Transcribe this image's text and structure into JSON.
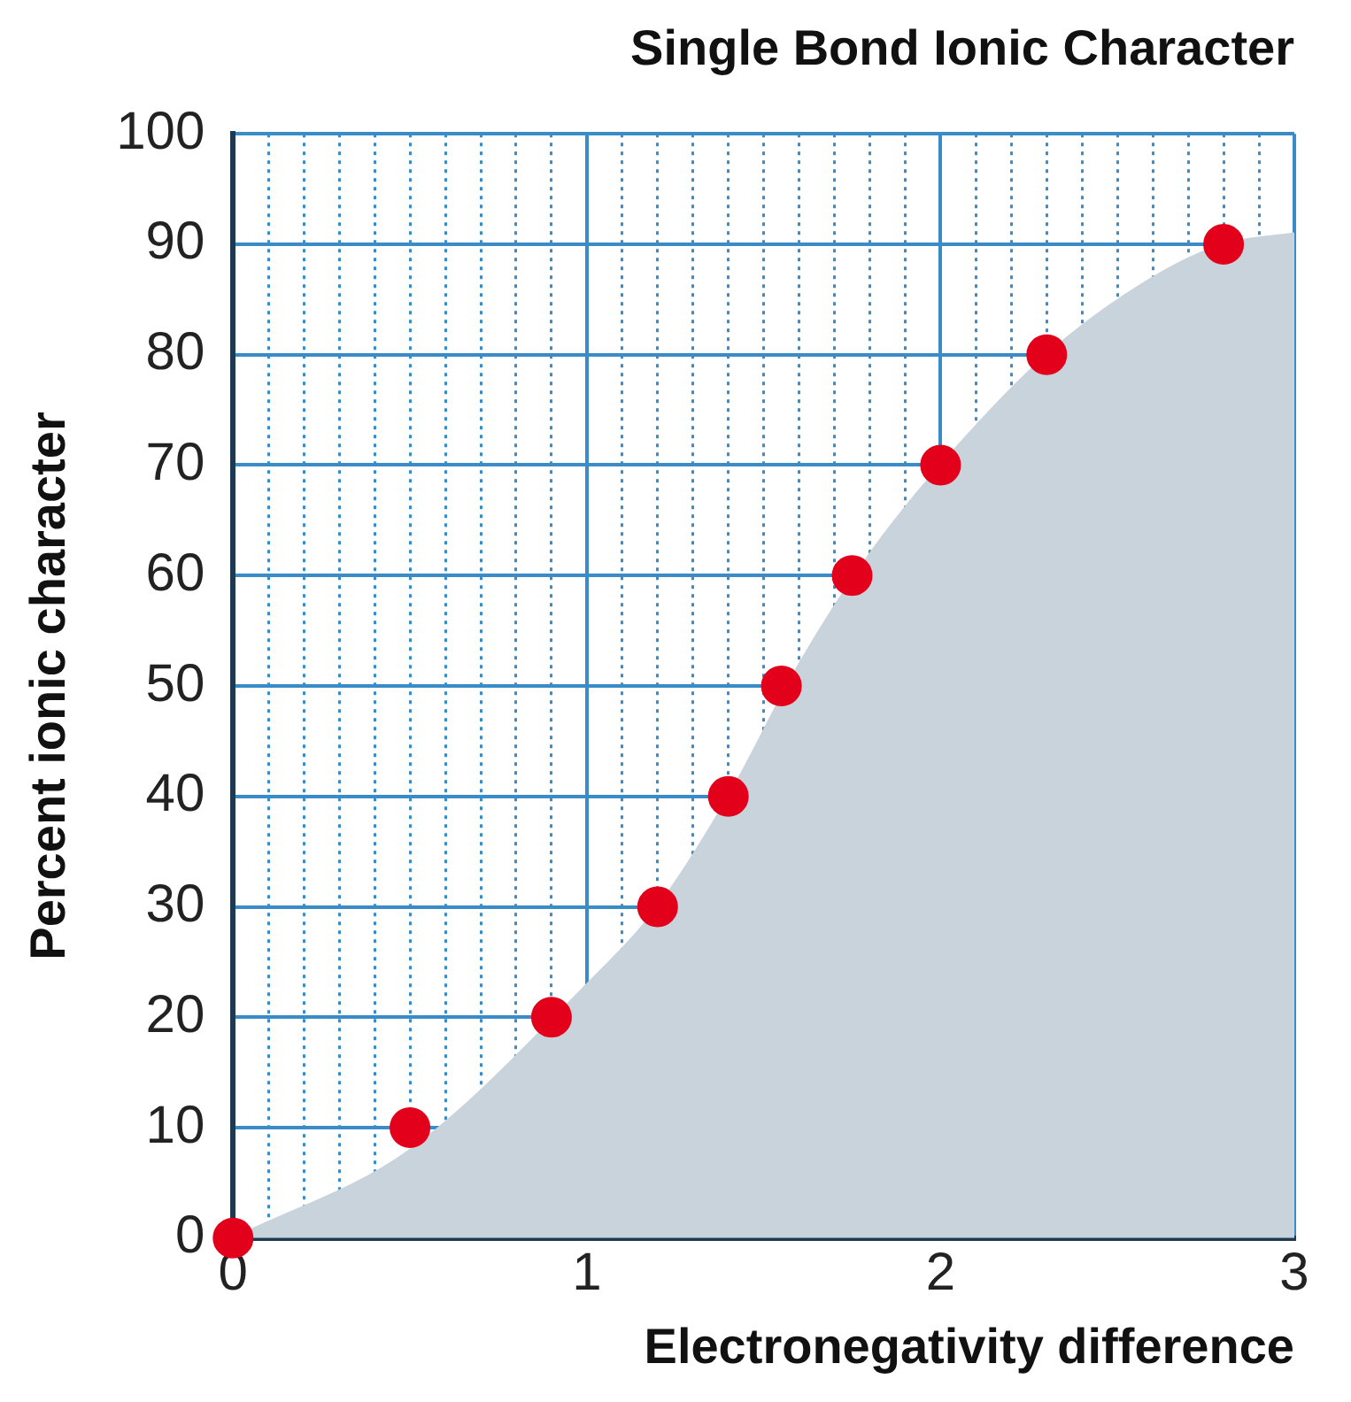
{
  "chart_data": {
    "type": "scatter",
    "title": "Single Bond Ionic Character",
    "xlabel": "Electronegativity difference",
    "ylabel": "Percent ionic character",
    "series": [
      {
        "type": "area",
        "color": "#c9d3dc",
        "x": [
          0,
          0.5,
          1,
          1.2,
          1.4,
          1.6,
          1.8,
          2,
          2.3,
          2.6,
          2.8,
          3
        ],
        "values": [
          0,
          8,
          23,
          30,
          40,
          52,
          62,
          70,
          80,
          87,
          90,
          91
        ]
      },
      {
        "color": "#e3001b",
        "marker": "circle",
        "x": [
          0,
          0.5,
          0.9,
          1.2,
          1.4,
          1.55,
          1.75,
          2,
          2.3,
          2.8
        ],
        "values": [
          0,
          10,
          20,
          30,
          40,
          50,
          60,
          70,
          80,
          90
        ]
      }
    ],
    "xlim": [
      0,
      3
    ],
    "xticks": [
      0,
      {
        "value": 0.1,
        "label": null
      },
      {
        "value": 0.2,
        "label": null
      },
      {
        "value": 0.3,
        "label": null
      },
      {
        "value": 0.4,
        "label": null
      },
      {
        "value": 0.5,
        "label": null
      },
      {
        "value": 0.6,
        "label": null
      },
      {
        "value": 0.7,
        "label": null
      },
      {
        "value": 0.8,
        "label": null
      },
      {
        "value": 0.9,
        "label": null
      },
      1,
      {
        "value": 1.1,
        "label": null
      },
      {
        "value": 1.2,
        "label": null
      },
      {
        "value": 1.3,
        "label": null
      },
      {
        "value": 1.4,
        "label": null
      },
      {
        "value": 1.5,
        "label": null
      },
      {
        "value": 1.6,
        "label": null
      },
      {
        "value": 1.7,
        "label": null
      },
      {
        "value": 1.8,
        "label": null
      },
      {
        "value": 1.9,
        "label": null
      },
      2,
      {
        "value": 2.1,
        "label": null
      },
      {
        "value": 2.2,
        "label": null
      },
      {
        "value": 2.3,
        "label": null
      },
      {
        "value": 2.4,
        "label": null
      },
      {
        "value": 2.5,
        "label": null
      },
      {
        "value": 2.6,
        "label": null
      },
      {
        "value": 2.7,
        "label": null
      },
      {
        "value": 2.8,
        "label": null
      },
      {
        "value": 2.9,
        "label": null
      },
      3
    ],
    "ylim": [
      0,
      100
    ],
    "yticks": [
      0,
      10,
      20,
      30,
      40,
      50,
      60,
      70,
      80,
      90,
      100
    ],
    "grid": true,
    "legend": false
  }
}
